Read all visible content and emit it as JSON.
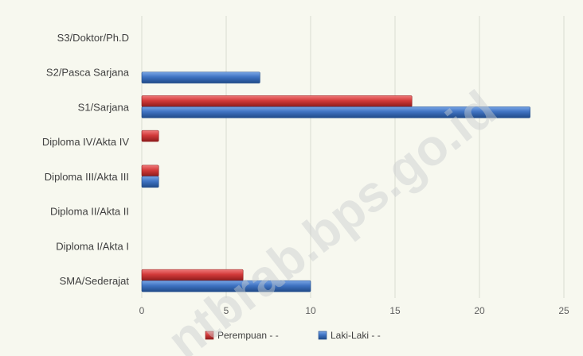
{
  "watermark": "ntbrab.bps.go.id",
  "colors": {
    "background": "#f7f8ef",
    "grid": "#d9dcd0",
    "perempuan": "#d23a3a",
    "perempuan_dark": "#8e1c1c",
    "laki": "#3f73c2",
    "laki_dark": "#1f4a88"
  },
  "chart_data": {
    "type": "bar",
    "orientation": "horizontal",
    "categories": [
      "S3/Doktor/Ph.D",
      "S2/Pasca Sarjana",
      "S1/Sarjana",
      "Diploma IV/Akta IV",
      "Diploma III/Akta III",
      "Diploma II/Akta II",
      "Diploma I/Akta I",
      "SMA/Sederajat"
    ],
    "series": [
      {
        "name": "Perempuan - -",
        "values": [
          0,
          0,
          16,
          1,
          1,
          0,
          0,
          6
        ]
      },
      {
        "name": "Laki-Laki - -",
        "values": [
          0,
          7,
          23,
          0,
          1,
          0,
          0,
          10
        ]
      }
    ],
    "xlim": [
      0,
      25
    ],
    "xticks": [
      "0",
      "5",
      "10",
      "15",
      "20",
      "25"
    ],
    "grid": "vertical",
    "legend_position": "bottom"
  }
}
